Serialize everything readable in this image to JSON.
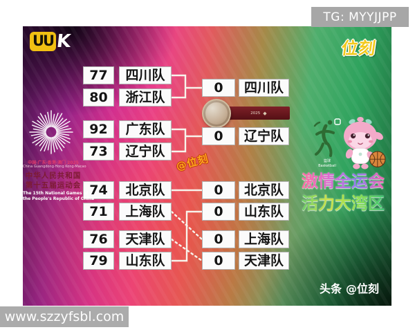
{
  "overlay": {
    "tg_badge": "TG: MYYJJPP",
    "site_watermark": "www.szzyfsbl.com"
  },
  "header": {
    "uuk_logo_left": "UU",
    "uuk_logo_right": "K",
    "weike_logo": "位刻"
  },
  "emblem": {
    "location_line": "中国·广东·香港·澳门 2025",
    "location_line_en": "China Guangdong·Hong Kong·Macao",
    "title_line1": "中华人民共和国",
    "title_line2": "第十五届运动会",
    "subtitle_en1": "The 15th National Games of",
    "subtitle_en2": "the People's Republic of China"
  },
  "bracket": {
    "first_round": [
      {
        "score": "77",
        "team": "四川队"
      },
      {
        "score": "80",
        "team": "浙江队"
      },
      {
        "score": "92",
        "team": "广东队"
      },
      {
        "score": "73",
        "team": "辽宁队"
      },
      {
        "score": "74",
        "team": "北京队"
      },
      {
        "score": "71",
        "team": "上海队"
      },
      {
        "score": "76",
        "team": "天津队"
      },
      {
        "score": "79",
        "team": "山东队"
      }
    ],
    "second_round": [
      {
        "score": "0",
        "team": "四川队"
      },
      {
        "score": "0",
        "team": "辽宁队"
      },
      {
        "score": "0",
        "team": "北京队"
      },
      {
        "score": "0",
        "team": "山东队"
      },
      {
        "score": "0",
        "team": "上海队"
      },
      {
        "score": "0",
        "team": "天津队"
      }
    ]
  },
  "medal": {
    "ribbon_text": "2025"
  },
  "icons": {
    "ribbon_emblem": "◆"
  },
  "mascot_area": {
    "sport_cn": "篮球",
    "sport_en": "Basketball"
  },
  "slogan": {
    "line1": "激情全运会",
    "line2": "活力大湾区"
  },
  "watermark_center": "@位刻",
  "byline": {
    "prefix": "头条",
    "handle": "@位刻"
  },
  "colors": {
    "accent_yellow": "#f3c91c",
    "slogan_pink": "#e06ad0",
    "slogan_green": "#5fd06a",
    "ribbon_red": "#6b1820",
    "badge_gray": "#a7a7a7"
  }
}
